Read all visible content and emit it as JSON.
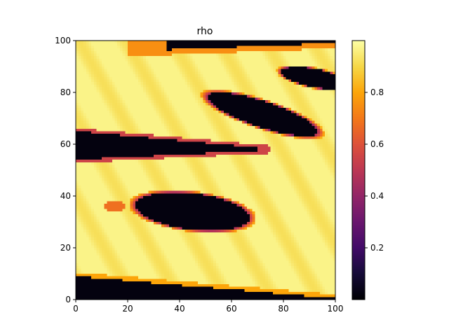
{
  "chart_data": {
    "type": "heatmap",
    "title": "rho",
    "xlabel": "",
    "ylabel": "",
    "xlim": [
      0,
      100
    ],
    "ylim": [
      0,
      100
    ],
    "x_ticks": [
      0,
      20,
      40,
      60,
      80,
      100
    ],
    "y_ticks": [
      0,
      20,
      40,
      60,
      80,
      100
    ],
    "colormap": "inferno",
    "colorbar": {
      "range": [
        0.0,
        1.0
      ],
      "ticks": [
        0.2,
        0.4,
        0.6,
        0.8
      ],
      "tick_labels": [
        "0.2",
        "0.4",
        "0.6",
        "0.8"
      ]
    },
    "grid_resolution": [
      100,
      100
    ],
    "field_description_regions": [
      {
        "region": "bottom dark band",
        "value": 0.02
      },
      {
        "region": "lower eye-shaped low-density pocket centered near (47, 33)",
        "value": 0.02
      },
      {
        "region": "middle dark band near y = 60",
        "value": 0.02
      },
      {
        "region": "upper dark wedge centered near (72, 72)",
        "value": 0.02
      },
      {
        "region": "upper-right dark wedge near (90, 85)",
        "value": 0.02
      },
      {
        "region": "top dark band near y = 98",
        "value": 0.02
      },
      {
        "region": "background dense fluid",
        "value": 0.95
      }
    ]
  },
  "colors": {
    "low": "#000004",
    "mid": "#bc3754",
    "high": "#fcffa4"
  }
}
